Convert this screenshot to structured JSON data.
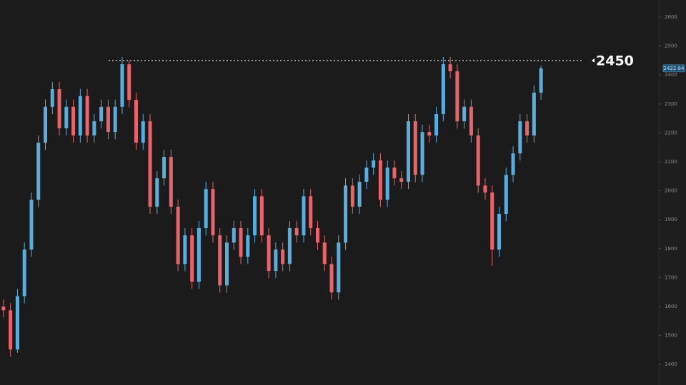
{
  "chart_data": {
    "type": "candlestick",
    "up_color": "#5aaede",
    "down_color": "#e8646a",
    "open": [
      1600,
      1587,
      1452,
      1636,
      1797,
      1969,
      2166,
      2290,
      2351,
      2216,
      2290,
      2191,
      2327,
      2191,
      2240,
      2290,
      2203,
      2290,
      2437,
      2314,
      2166,
      2240,
      1945,
      2043,
      2117,
      1945,
      1747,
      1846,
      1686,
      1871,
      2006,
      1846,
      1673,
      1821,
      1871,
      1772,
      1846,
      1981,
      1846,
      1723,
      1797,
      1747,
      1871,
      1846,
      1981,
      1871,
      1821,
      1747,
      1649,
      1821,
      2018,
      1945,
      2031,
      2080,
      2105,
      1969,
      2080,
      2043,
      2031,
      2240,
      2055,
      2203,
      2191,
      2265,
      2437,
      2413,
      2240,
      2290,
      2191,
      2018,
      1994,
      1797,
      1920,
      2055,
      2129,
      2240,
      2191,
      2339
    ],
    "high": [
      1625,
      1612,
      1661,
      1822,
      1994,
      2191,
      2315,
      2376,
      2376,
      2315,
      2315,
      2352,
      2352,
      2265,
      2315,
      2315,
      2315,
      2462,
      2450,
      2339,
      2265,
      2265,
      2068,
      2142,
      2142,
      1970,
      1871,
      1871,
      1896,
      2031,
      2031,
      1871,
      1846,
      1896,
      1896,
      1871,
      2006,
      2006,
      1871,
      1822,
      1822,
      1896,
      1896,
      2006,
      2006,
      1896,
      1846,
      1772,
      1846,
      2043,
      2043,
      2056,
      2105,
      2130,
      2130,
      2105,
      2105,
      2068,
      2265,
      2265,
      2228,
      2228,
      2290,
      2462,
      2462,
      2438,
      2315,
      2315,
      2216,
      2043,
      2019,
      1945,
      2080,
      2154,
      2265,
      2265,
      2364,
      2432
    ],
    "low": [
      1562,
      1427,
      1440,
      1611,
      1772,
      1944,
      2141,
      2265,
      2191,
      2191,
      2166,
      2166,
      2166,
      2166,
      2215,
      2178,
      2178,
      2265,
      2289,
      2141,
      2141,
      1920,
      1920,
      2018,
      1920,
      1722,
      1722,
      1661,
      1661,
      1846,
      1821,
      1648,
      1648,
      1796,
      1747,
      1747,
      1821,
      1821,
      1698,
      1698,
      1722,
      1722,
      1821,
      1821,
      1846,
      1796,
      1722,
      1624,
      1624,
      1796,
      1920,
      1920,
      2006,
      2055,
      1944,
      1944,
      2018,
      2006,
      2006,
      2030,
      2030,
      2166,
      2166,
      2240,
      2388,
      2215,
      2215,
      2166,
      1993,
      1969,
      1740,
      1772,
      1895,
      2030,
      2104,
      2166,
      2166,
      2314
    ],
    "close": [
      1587,
      1452,
      1636,
      1797,
      1969,
      2166,
      2290,
      2351,
      2216,
      2290,
      2191,
      2327,
      2191,
      2240,
      2290,
      2203,
      2290,
      2437,
      2314,
      2166,
      2240,
      1945,
      2043,
      2117,
      1945,
      1747,
      1846,
      1686,
      1871,
      2006,
      1846,
      1673,
      1821,
      1871,
      1772,
      1846,
      1981,
      1846,
      1723,
      1797,
      1747,
      1871,
      1846,
      1981,
      1871,
      1821,
      1747,
      1649,
      1821,
      2018,
      1945,
      2031,
      2080,
      2105,
      1969,
      2080,
      2043,
      2031,
      2240,
      2055,
      2203,
      2191,
      2265,
      2437,
      2413,
      2240,
      2290,
      2191,
      2018,
      1994,
      1797,
      1920,
      2055,
      2129,
      2240,
      2191,
      2339,
      2422.84
    ],
    "ylim": [
      1329,
      2659
    ],
    "yticks": [
      1400,
      1500,
      1600,
      1700,
      1800,
      1900,
      2000,
      2100,
      2200,
      2300,
      2400,
      2500,
      2600
    ],
    "annotation": {
      "value": 2450
    }
  }
}
